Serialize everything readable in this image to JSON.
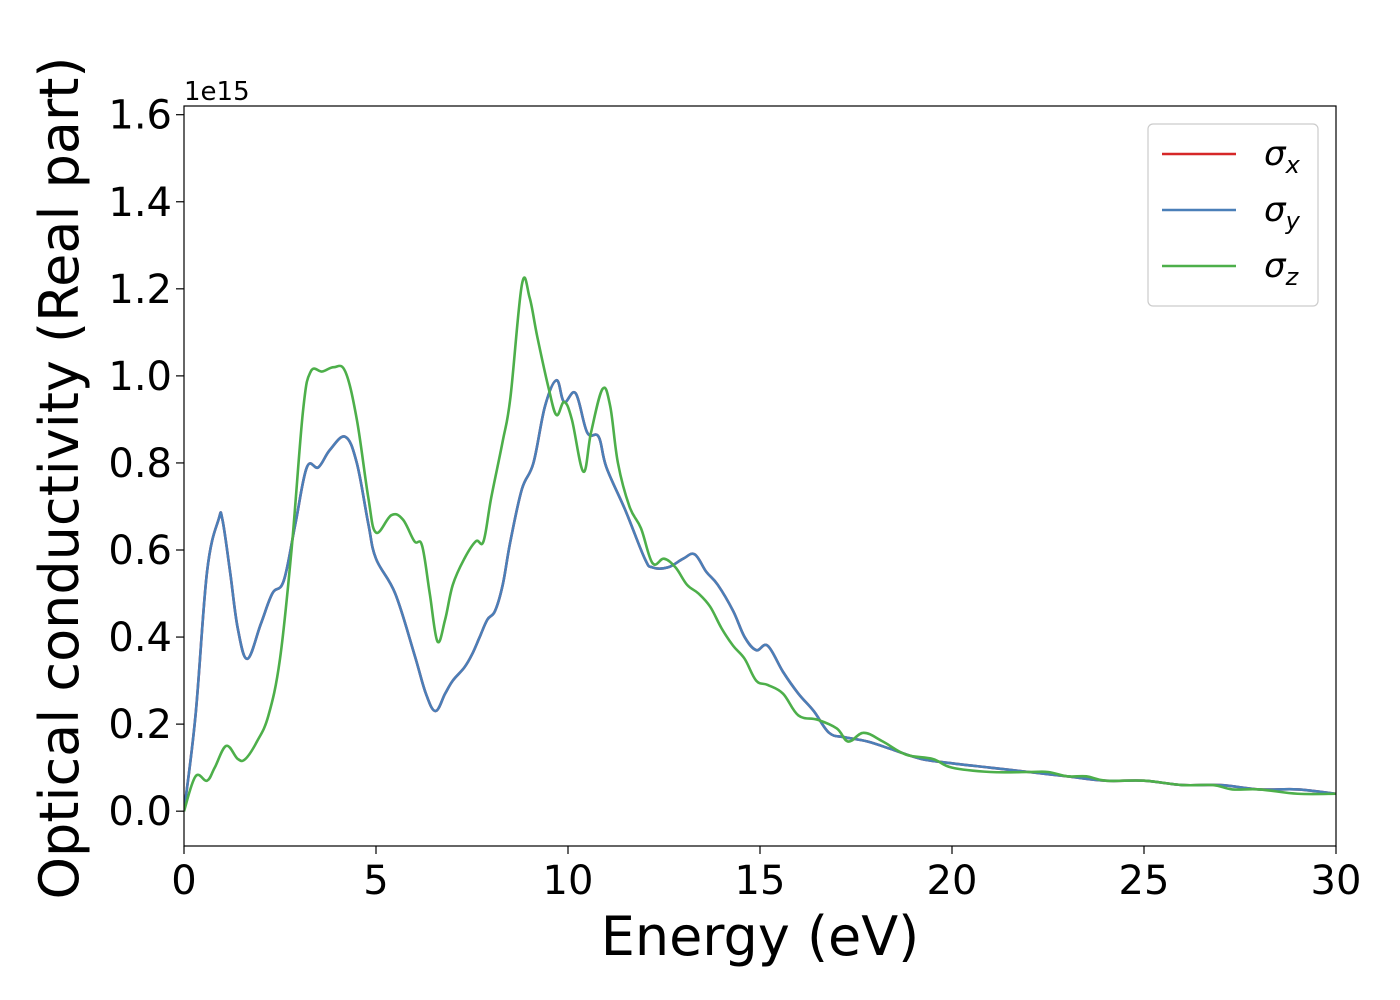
{
  "chart_data": {
    "type": "line",
    "xlabel": "Energy (eV)",
    "ylabel": "Optical conductivity (Real part)",
    "y_offset_label": "1e15",
    "xlim": [
      0,
      30
    ],
    "ylim": [
      -0.08,
      1.62
    ],
    "x_ticks": [
      0,
      5,
      10,
      15,
      20,
      25,
      30
    ],
    "x_tick_labels": [
      "0",
      "5",
      "10",
      "15",
      "20",
      "25",
      "30"
    ],
    "y_ticks": [
      0.0,
      0.2,
      0.4,
      0.6,
      0.8,
      1.0,
      1.2,
      1.4,
      1.6
    ],
    "y_tick_labels": [
      "0.0",
      "0.2",
      "0.4",
      "0.6",
      "0.8",
      "1.0",
      "1.2",
      "1.4",
      "1.6"
    ],
    "grid": false,
    "legend_position": "top-right",
    "series": [
      {
        "name": "σx",
        "legend_symbol": "σ",
        "legend_subscript": "x",
        "color": "#d62728",
        "x": [
          0,
          0.3,
          0.6,
          0.9,
          1.0,
          1.2,
          1.4,
          1.65,
          2.0,
          2.3,
          2.6,
          2.9,
          3.2,
          3.5,
          3.8,
          4.2,
          4.5,
          4.8,
          5.0,
          5.5,
          6.0,
          6.3,
          6.55,
          6.8,
          7.0,
          7.3,
          7.5,
          7.7,
          7.9,
          8.1,
          8.3,
          8.5,
          8.8,
          9.1,
          9.4,
          9.7,
          9.9,
          10.2,
          10.5,
          10.8,
          11.0,
          11.5,
          12.0,
          12.2,
          12.6,
          13.0,
          13.3,
          13.6,
          13.9,
          14.3,
          14.6,
          14.9,
          15.2,
          15.6,
          16.0,
          16.4,
          16.8,
          17.2,
          17.8,
          18.5,
          19.2,
          20.0,
          21.0,
          22.0,
          23.0,
          24.0,
          25.0,
          26.0,
          27.0,
          28.0,
          29.0,
          30.0
        ],
        "values": [
          0.0,
          0.22,
          0.55,
          0.67,
          0.67,
          0.55,
          0.42,
          0.35,
          0.43,
          0.5,
          0.53,
          0.66,
          0.79,
          0.79,
          0.83,
          0.86,
          0.8,
          0.66,
          0.58,
          0.5,
          0.36,
          0.27,
          0.23,
          0.27,
          0.3,
          0.33,
          0.36,
          0.4,
          0.44,
          0.46,
          0.52,
          0.62,
          0.74,
          0.8,
          0.93,
          0.99,
          0.94,
          0.96,
          0.87,
          0.86,
          0.79,
          0.69,
          0.58,
          0.56,
          0.56,
          0.58,
          0.59,
          0.55,
          0.52,
          0.46,
          0.4,
          0.37,
          0.38,
          0.32,
          0.27,
          0.23,
          0.18,
          0.17,
          0.16,
          0.14,
          0.12,
          0.11,
          0.1,
          0.09,
          0.08,
          0.07,
          0.07,
          0.06,
          0.06,
          0.05,
          0.05,
          0.04
        ]
      },
      {
        "name": "σy",
        "legend_symbol": "σ",
        "legend_subscript": "y",
        "color": "#4a7fb8",
        "x": [
          0,
          0.3,
          0.6,
          0.9,
          1.0,
          1.2,
          1.4,
          1.65,
          2.0,
          2.3,
          2.6,
          2.9,
          3.2,
          3.5,
          3.8,
          4.2,
          4.5,
          4.8,
          5.0,
          5.5,
          6.0,
          6.3,
          6.55,
          6.8,
          7.0,
          7.3,
          7.5,
          7.7,
          7.9,
          8.1,
          8.3,
          8.5,
          8.8,
          9.1,
          9.4,
          9.7,
          9.9,
          10.2,
          10.5,
          10.8,
          11.0,
          11.5,
          12.0,
          12.2,
          12.6,
          13.0,
          13.3,
          13.6,
          13.9,
          14.3,
          14.6,
          14.9,
          15.2,
          15.6,
          16.0,
          16.4,
          16.8,
          17.2,
          17.8,
          18.5,
          19.2,
          20.0,
          21.0,
          22.0,
          23.0,
          24.0,
          25.0,
          26.0,
          27.0,
          28.0,
          29.0,
          30.0
        ],
        "values": [
          0.0,
          0.22,
          0.55,
          0.67,
          0.67,
          0.55,
          0.42,
          0.35,
          0.43,
          0.5,
          0.53,
          0.66,
          0.79,
          0.79,
          0.83,
          0.86,
          0.8,
          0.66,
          0.58,
          0.5,
          0.36,
          0.27,
          0.23,
          0.27,
          0.3,
          0.33,
          0.36,
          0.4,
          0.44,
          0.46,
          0.52,
          0.62,
          0.74,
          0.8,
          0.93,
          0.99,
          0.94,
          0.96,
          0.87,
          0.86,
          0.79,
          0.69,
          0.58,
          0.56,
          0.56,
          0.58,
          0.59,
          0.55,
          0.52,
          0.46,
          0.4,
          0.37,
          0.38,
          0.32,
          0.27,
          0.23,
          0.18,
          0.17,
          0.16,
          0.14,
          0.12,
          0.11,
          0.1,
          0.09,
          0.08,
          0.07,
          0.07,
          0.06,
          0.06,
          0.05,
          0.05,
          0.04
        ]
      },
      {
        "name": "σz",
        "legend_symbol": "σ",
        "legend_subscript": "z",
        "color": "#4daf4a",
        "x": [
          0,
          0.3,
          0.6,
          0.8,
          1.1,
          1.4,
          1.6,
          1.9,
          2.2,
          2.5,
          2.8,
          3.1,
          3.3,
          3.6,
          3.9,
          4.2,
          4.5,
          4.8,
          5.0,
          5.4,
          5.7,
          6.0,
          6.2,
          6.4,
          6.6,
          6.8,
          7.0,
          7.3,
          7.6,
          7.8,
          8.0,
          8.3,
          8.5,
          8.8,
          9.0,
          9.2,
          9.5,
          9.7,
          9.9,
          10.1,
          10.4,
          10.6,
          10.9,
          11.1,
          11.3,
          11.6,
          11.9,
          12.2,
          12.5,
          12.8,
          13.1,
          13.4,
          13.7,
          14.0,
          14.3,
          14.6,
          14.9,
          15.2,
          15.6,
          16.0,
          16.5,
          17.0,
          17.3,
          17.7,
          18.2,
          18.8,
          19.5,
          20.0,
          21.0,
          22.0,
          22.5,
          23.0,
          23.5,
          24.0,
          25.0,
          26.0,
          26.8,
          27.3,
          28.0,
          29.0,
          30.0
        ],
        "values": [
          0.0,
          0.08,
          0.07,
          0.1,
          0.15,
          0.12,
          0.12,
          0.16,
          0.22,
          0.35,
          0.6,
          0.92,
          1.01,
          1.01,
          1.02,
          1.01,
          0.9,
          0.72,
          0.64,
          0.68,
          0.67,
          0.62,
          0.61,
          0.5,
          0.39,
          0.44,
          0.52,
          0.58,
          0.62,
          0.62,
          0.72,
          0.85,
          0.95,
          1.21,
          1.18,
          1.09,
          0.97,
          0.91,
          0.94,
          0.9,
          0.78,
          0.87,
          0.97,
          0.93,
          0.8,
          0.7,
          0.65,
          0.57,
          0.58,
          0.56,
          0.52,
          0.5,
          0.47,
          0.42,
          0.38,
          0.35,
          0.3,
          0.29,
          0.27,
          0.22,
          0.21,
          0.19,
          0.16,
          0.18,
          0.16,
          0.13,
          0.12,
          0.1,
          0.09,
          0.09,
          0.09,
          0.08,
          0.08,
          0.07,
          0.07,
          0.06,
          0.06,
          0.05,
          0.05,
          0.04,
          0.04
        ]
      }
    ]
  }
}
